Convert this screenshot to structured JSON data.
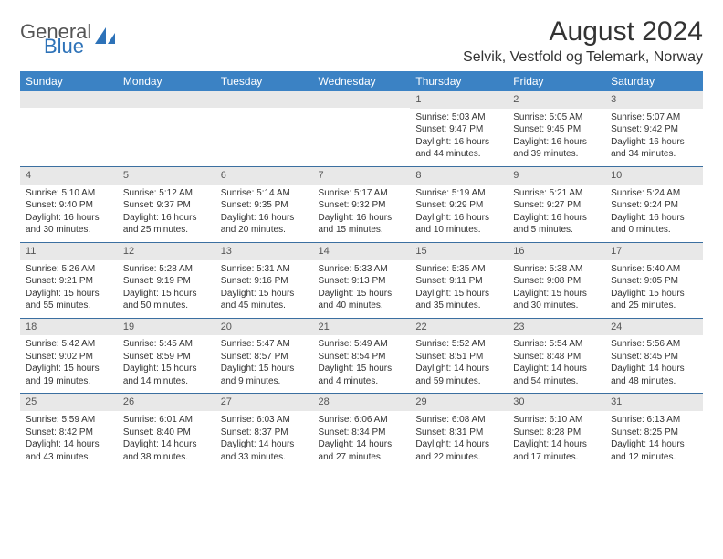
{
  "logo": {
    "general": "General",
    "blue": "Blue"
  },
  "title": "August 2024",
  "location": "Selvik, Vestfold og Telemark, Norway",
  "day_headers": [
    "Sunday",
    "Monday",
    "Tuesday",
    "Wednesday",
    "Thursday",
    "Friday",
    "Saturday"
  ],
  "colors": {
    "header_bg": "#3b82c4",
    "header_text": "#ffffff",
    "daynum_bg": "#e8e8e8",
    "border": "#3b6fa0",
    "text": "#333333",
    "logo_gray": "#555555",
    "logo_blue": "#2d72b8"
  },
  "fonts": {
    "title_size": 30,
    "location_size": 16,
    "header_size": 12,
    "daynum_size": 11,
    "body_size": 10
  },
  "weeks": [
    [
      {
        "num": "",
        "lines": [
          "",
          "",
          "",
          ""
        ]
      },
      {
        "num": "",
        "lines": [
          "",
          "",
          "",
          ""
        ]
      },
      {
        "num": "",
        "lines": [
          "",
          "",
          "",
          ""
        ]
      },
      {
        "num": "",
        "lines": [
          "",
          "",
          "",
          ""
        ]
      },
      {
        "num": "1",
        "lines": [
          "Sunrise: 5:03 AM",
          "Sunset: 9:47 PM",
          "Daylight: 16 hours",
          "and 44 minutes."
        ]
      },
      {
        "num": "2",
        "lines": [
          "Sunrise: 5:05 AM",
          "Sunset: 9:45 PM",
          "Daylight: 16 hours",
          "and 39 minutes."
        ]
      },
      {
        "num": "3",
        "lines": [
          "Sunrise: 5:07 AM",
          "Sunset: 9:42 PM",
          "Daylight: 16 hours",
          "and 34 minutes."
        ]
      }
    ],
    [
      {
        "num": "4",
        "lines": [
          "Sunrise: 5:10 AM",
          "Sunset: 9:40 PM",
          "Daylight: 16 hours",
          "and 30 minutes."
        ]
      },
      {
        "num": "5",
        "lines": [
          "Sunrise: 5:12 AM",
          "Sunset: 9:37 PM",
          "Daylight: 16 hours",
          "and 25 minutes."
        ]
      },
      {
        "num": "6",
        "lines": [
          "Sunrise: 5:14 AM",
          "Sunset: 9:35 PM",
          "Daylight: 16 hours",
          "and 20 minutes."
        ]
      },
      {
        "num": "7",
        "lines": [
          "Sunrise: 5:17 AM",
          "Sunset: 9:32 PM",
          "Daylight: 16 hours",
          "and 15 minutes."
        ]
      },
      {
        "num": "8",
        "lines": [
          "Sunrise: 5:19 AM",
          "Sunset: 9:29 PM",
          "Daylight: 16 hours",
          "and 10 minutes."
        ]
      },
      {
        "num": "9",
        "lines": [
          "Sunrise: 5:21 AM",
          "Sunset: 9:27 PM",
          "Daylight: 16 hours",
          "and 5 minutes."
        ]
      },
      {
        "num": "10",
        "lines": [
          "Sunrise: 5:24 AM",
          "Sunset: 9:24 PM",
          "Daylight: 16 hours",
          "and 0 minutes."
        ]
      }
    ],
    [
      {
        "num": "11",
        "lines": [
          "Sunrise: 5:26 AM",
          "Sunset: 9:21 PM",
          "Daylight: 15 hours",
          "and 55 minutes."
        ]
      },
      {
        "num": "12",
        "lines": [
          "Sunrise: 5:28 AM",
          "Sunset: 9:19 PM",
          "Daylight: 15 hours",
          "and 50 minutes."
        ]
      },
      {
        "num": "13",
        "lines": [
          "Sunrise: 5:31 AM",
          "Sunset: 9:16 PM",
          "Daylight: 15 hours",
          "and 45 minutes."
        ]
      },
      {
        "num": "14",
        "lines": [
          "Sunrise: 5:33 AM",
          "Sunset: 9:13 PM",
          "Daylight: 15 hours",
          "and 40 minutes."
        ]
      },
      {
        "num": "15",
        "lines": [
          "Sunrise: 5:35 AM",
          "Sunset: 9:11 PM",
          "Daylight: 15 hours",
          "and 35 minutes."
        ]
      },
      {
        "num": "16",
        "lines": [
          "Sunrise: 5:38 AM",
          "Sunset: 9:08 PM",
          "Daylight: 15 hours",
          "and 30 minutes."
        ]
      },
      {
        "num": "17",
        "lines": [
          "Sunrise: 5:40 AM",
          "Sunset: 9:05 PM",
          "Daylight: 15 hours",
          "and 25 minutes."
        ]
      }
    ],
    [
      {
        "num": "18",
        "lines": [
          "Sunrise: 5:42 AM",
          "Sunset: 9:02 PM",
          "Daylight: 15 hours",
          "and 19 minutes."
        ]
      },
      {
        "num": "19",
        "lines": [
          "Sunrise: 5:45 AM",
          "Sunset: 8:59 PM",
          "Daylight: 15 hours",
          "and 14 minutes."
        ]
      },
      {
        "num": "20",
        "lines": [
          "Sunrise: 5:47 AM",
          "Sunset: 8:57 PM",
          "Daylight: 15 hours",
          "and 9 minutes."
        ]
      },
      {
        "num": "21",
        "lines": [
          "Sunrise: 5:49 AM",
          "Sunset: 8:54 PM",
          "Daylight: 15 hours",
          "and 4 minutes."
        ]
      },
      {
        "num": "22",
        "lines": [
          "Sunrise: 5:52 AM",
          "Sunset: 8:51 PM",
          "Daylight: 14 hours",
          "and 59 minutes."
        ]
      },
      {
        "num": "23",
        "lines": [
          "Sunrise: 5:54 AM",
          "Sunset: 8:48 PM",
          "Daylight: 14 hours",
          "and 54 minutes."
        ]
      },
      {
        "num": "24",
        "lines": [
          "Sunrise: 5:56 AM",
          "Sunset: 8:45 PM",
          "Daylight: 14 hours",
          "and 48 minutes."
        ]
      }
    ],
    [
      {
        "num": "25",
        "lines": [
          "Sunrise: 5:59 AM",
          "Sunset: 8:42 PM",
          "Daylight: 14 hours",
          "and 43 minutes."
        ]
      },
      {
        "num": "26",
        "lines": [
          "Sunrise: 6:01 AM",
          "Sunset: 8:40 PM",
          "Daylight: 14 hours",
          "and 38 minutes."
        ]
      },
      {
        "num": "27",
        "lines": [
          "Sunrise: 6:03 AM",
          "Sunset: 8:37 PM",
          "Daylight: 14 hours",
          "and 33 minutes."
        ]
      },
      {
        "num": "28",
        "lines": [
          "Sunrise: 6:06 AM",
          "Sunset: 8:34 PM",
          "Daylight: 14 hours",
          "and 27 minutes."
        ]
      },
      {
        "num": "29",
        "lines": [
          "Sunrise: 6:08 AM",
          "Sunset: 8:31 PM",
          "Daylight: 14 hours",
          "and 22 minutes."
        ]
      },
      {
        "num": "30",
        "lines": [
          "Sunrise: 6:10 AM",
          "Sunset: 8:28 PM",
          "Daylight: 14 hours",
          "and 17 minutes."
        ]
      },
      {
        "num": "31",
        "lines": [
          "Sunrise: 6:13 AM",
          "Sunset: 8:25 PM",
          "Daylight: 14 hours",
          "and 12 minutes."
        ]
      }
    ]
  ]
}
